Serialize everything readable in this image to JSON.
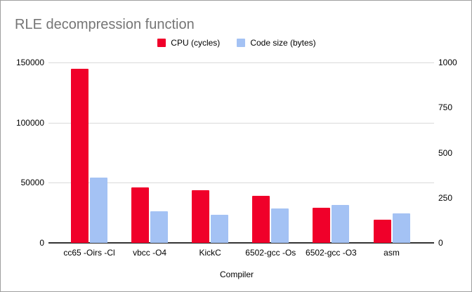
{
  "chart_data": {
    "type": "bar",
    "title": "RLE decompression function",
    "xlabel": "Compiler",
    "categories": [
      "cc65 -Oirs -Cl",
      "vbcc -O4",
      "KickC",
      "6502-gcc -Os",
      "6502-gcc -O3",
      "asm"
    ],
    "series": [
      {
        "name": "CPU (cycles)",
        "axis": "left",
        "color": "#f0002a",
        "values": [
          144500,
          46000,
          43800,
          39400,
          29400,
          19200
        ]
      },
      {
        "name": "Code size (bytes)",
        "axis": "right",
        "color": "#a4c2f4",
        "values": [
          361,
          174,
          157,
          189,
          211,
          165
        ]
      }
    ],
    "left_axis": {
      "min": 0,
      "max": 150000,
      "ticks": [
        0,
        50000,
        100000,
        150000
      ],
      "tick_labels": [
        "0",
        "50000",
        "100000",
        "150000"
      ]
    },
    "right_axis": {
      "min": 0,
      "max": 1000,
      "ticks": [
        0,
        250,
        500,
        750,
        1000
      ],
      "tick_labels": [
        "0",
        "250",
        "500",
        "750",
        "1000"
      ]
    },
    "grid": true,
    "legend_position": "top"
  },
  "colors": {
    "title_text": "#757575",
    "axis_text": "#000000",
    "gridline": "#d9d9d9",
    "axis_line": "#333333",
    "frame_border": "#9e9e9e",
    "background": "#ffffff"
  }
}
